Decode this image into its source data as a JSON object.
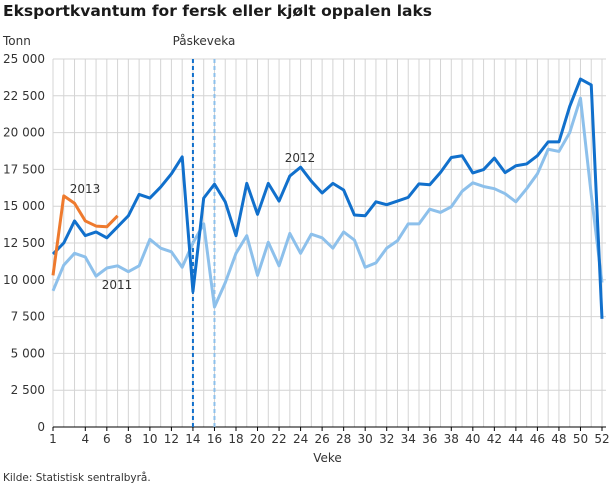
{
  "chart_data": {
    "type": "line",
    "title": "Eksportkvantum for fersk eller kjølt oppalen laks",
    "ylabel": "Tonn",
    "xlabel": "Veke",
    "source": "Kilde: Statistisk sentralbyrå.",
    "ylim": [
      0,
      25000
    ],
    "yticks": [
      0,
      2500,
      5000,
      7500,
      10000,
      12500,
      15000,
      17500,
      20000,
      22500,
      25000
    ],
    "ytick_labels": [
      "0",
      "2 500",
      "5 000",
      "7 500",
      "10 000",
      "12 500",
      "15 000",
      "17 500",
      "20 000",
      "22 500",
      "25 000"
    ],
    "xlim": [
      1,
      52
    ],
    "xticks": [
      1,
      4,
      6,
      8,
      10,
      12,
      14,
      16,
      18,
      20,
      22,
      24,
      26,
      28,
      30,
      32,
      34,
      36,
      38,
      40,
      42,
      44,
      46,
      48,
      50,
      52
    ],
    "grid": true,
    "legend": "none (inline labels)",
    "annotations": [
      {
        "text": "Påskeveka",
        "week_lines": [
          14,
          16
        ]
      }
    ],
    "series": [
      {
        "name": "2011",
        "color": "#8dc0eb",
        "start_week": 1,
        "values": [
          9250,
          11000,
          11800,
          11550,
          10250,
          10800,
          10950,
          10550,
          10950,
          12750,
          12150,
          11900,
          10850,
          12500,
          13800,
          8150,
          9800,
          11800,
          13000,
          10300,
          12550,
          10950,
          13150,
          11800,
          13100,
          12850,
          12150,
          13250,
          12700,
          10850,
          11150,
          12150,
          12650,
          13800,
          13800,
          14800,
          14580,
          14960,
          16010,
          16590,
          16340,
          16190,
          15850,
          15300,
          16190,
          17200,
          18870,
          18720,
          20000,
          22340,
          15800,
          9810
        ]
      },
      {
        "name": "2012",
        "color": "#1170cc",
        "start_week": 1,
        "values": [
          11750,
          12500,
          14000,
          13000,
          13250,
          12850,
          13600,
          14350,
          15800,
          15550,
          16300,
          17200,
          18350,
          9200,
          15550,
          16500,
          15300,
          13000,
          16550,
          14450,
          16550,
          15350,
          17050,
          17650,
          16700,
          15900,
          16550,
          16100,
          14400,
          14350,
          15300,
          15100,
          15350,
          15600,
          16520,
          16460,
          17300,
          18310,
          18430,
          17260,
          17490,
          18270,
          17280,
          17750,
          17870,
          18430,
          19370,
          19370,
          21780,
          23640,
          23240,
          7350
        ]
      },
      {
        "name": "2013",
        "color": "#ee7a2e",
        "start_week": 1,
        "values": [
          10300,
          15700,
          15200,
          14000,
          13650,
          13600,
          14350
        ]
      }
    ]
  }
}
